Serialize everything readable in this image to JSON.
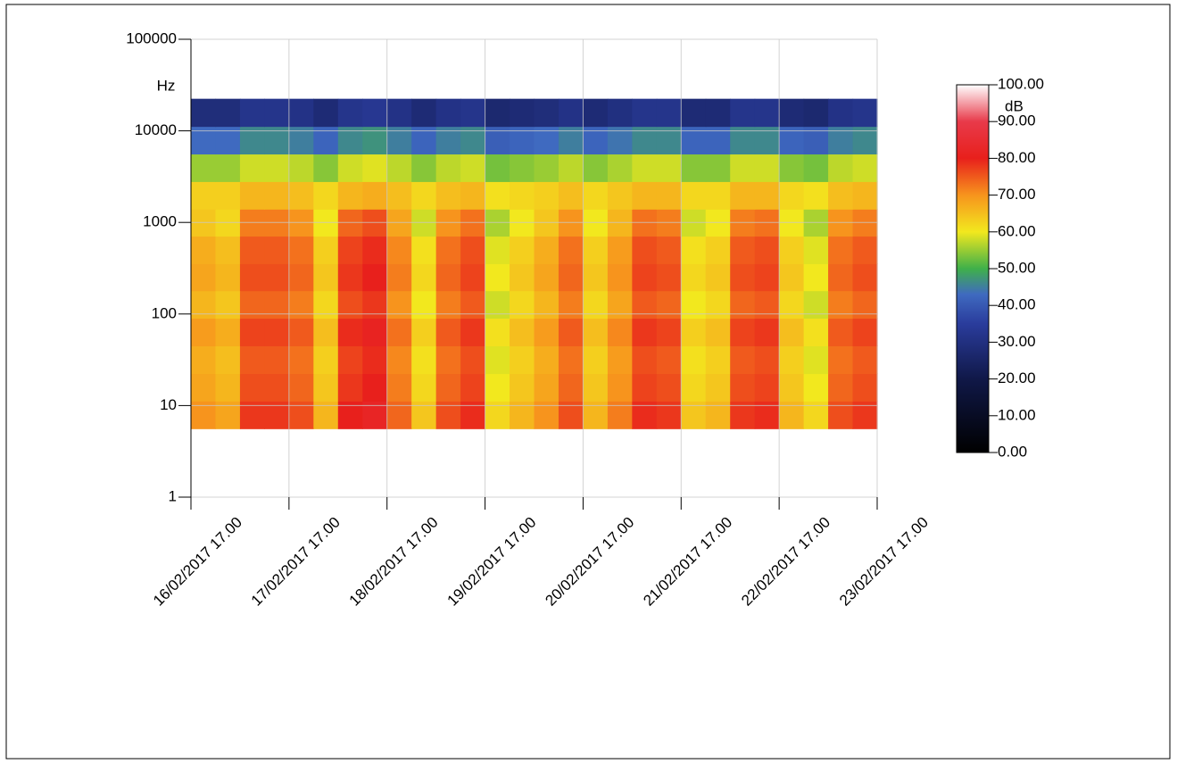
{
  "chart_data": {
    "type": "heatmap",
    "y_label": "Hz",
    "colorbar_label": "dB",
    "xticks": [
      "16/02/2017 17.00",
      "17/02/2017 17.00",
      "18/02/2017 17.00",
      "19/02/2017 17.00",
      "20/02/2017 17.00",
      "21/02/2017 17.00",
      "22/02/2017 17.00",
      "23/02/2017 17.00"
    ],
    "ylim": [
      1,
      100000
    ],
    "yticks": [
      1,
      10,
      100,
      1000,
      10000,
      100000
    ],
    "y_log": true,
    "grid": true,
    "bins": [
      5.6,
      11.2,
      22.4,
      45,
      90,
      180,
      355,
      710,
      1400,
      2800,
      5600,
      11200,
      22400
    ],
    "z": [
      [
        70,
        68,
        78,
        78,
        76,
        66,
        80,
        82,
        74,
        64,
        76,
        79,
        62,
        66,
        70,
        76,
        66,
        72,
        79,
        78,
        64,
        66,
        78,
        79,
        66,
        62,
        76,
        78
      ],
      [
        68,
        66,
        76,
        76,
        74,
        64,
        78,
        80,
        72,
        62,
        74,
        77,
        60,
        64,
        68,
        74,
        64,
        70,
        77,
        76,
        62,
        64,
        76,
        77,
        64,
        60,
        74,
        76
      ],
      [
        67,
        65,
        75,
        75,
        73,
        63,
        77,
        79,
        71,
        61,
        73,
        76,
        59,
        63,
        67,
        73,
        63,
        69,
        76,
        75,
        61,
        63,
        75,
        76,
        63,
        59,
        73,
        75
      ],
      [
        69,
        67,
        77,
        77,
        75,
        65,
        79,
        81,
        73,
        63,
        75,
        78,
        61,
        65,
        69,
        75,
        65,
        71,
        78,
        77,
        63,
        65,
        77,
        78,
        65,
        61,
        75,
        77
      ],
      [
        66,
        64,
        74,
        74,
        72,
        62,
        76,
        78,
        70,
        60,
        72,
        75,
        58,
        62,
        66,
        72,
        62,
        68,
        75,
        74,
        60,
        62,
        74,
        75,
        62,
        58,
        72,
        74
      ],
      [
        68,
        66,
        76,
        76,
        74,
        64,
        78,
        80,
        72,
        62,
        74,
        77,
        60,
        64,
        68,
        74,
        64,
        70,
        77,
        76,
        62,
        64,
        76,
        77,
        64,
        60,
        74,
        76
      ],
      [
        67,
        65,
        75,
        75,
        73,
        63,
        77,
        79,
        71,
        61,
        73,
        76,
        59,
        63,
        67,
        73,
        63,
        69,
        76,
        75,
        61,
        63,
        75,
        76,
        63,
        59,
        73,
        75
      ],
      [
        64,
        62,
        72,
        72,
        70,
        60,
        74,
        76,
        68,
        58,
        70,
        73,
        56,
        60,
        64,
        70,
        60,
        66,
        73,
        72,
        58,
        60,
        72,
        73,
        60,
        56,
        70,
        72
      ],
      [
        63,
        63,
        66,
        66,
        65,
        62,
        66,
        67,
        65,
        62,
        65,
        66,
        61,
        62,
        63,
        65,
        62,
        64,
        66,
        66,
        62,
        62,
        66,
        66,
        62,
        61,
        65,
        66
      ],
      [
        55,
        55,
        58,
        58,
        57,
        54,
        58,
        59,
        57,
        54,
        57,
        58,
        53,
        54,
        55,
        57,
        54,
        56,
        58,
        58,
        54,
        54,
        58,
        58,
        54,
        53,
        57,
        58
      ],
      [
        43,
        43,
        46,
        46,
        45,
        42,
        46,
        47,
        45,
        42,
        45,
        46,
        41,
        42,
        43,
        45,
        42,
        44,
        46,
        46,
        42,
        42,
        46,
        46,
        42,
        41,
        45,
        46
      ],
      [
        29,
        29,
        32,
        32,
        31,
        28,
        32,
        33,
        31,
        28,
        31,
        32,
        27,
        28,
        29,
        31,
        28,
        30,
        32,
        32,
        28,
        28,
        32,
        32,
        28,
        27,
        31,
        32
      ]
    ],
    "zlim": [
      0,
      100
    ],
    "zticks": [
      {
        "value": 0,
        "label": "0.00"
      },
      {
        "value": 10,
        "label": "10.00"
      },
      {
        "value": 20,
        "label": "20.00"
      },
      {
        "value": 30,
        "label": "30.00"
      },
      {
        "value": 40,
        "label": "40.00"
      },
      {
        "value": 50,
        "label": "50.00"
      },
      {
        "value": 60,
        "label": "60.00"
      },
      {
        "value": 70,
        "label": "70.00"
      },
      {
        "value": 80,
        "label": "80.00"
      },
      {
        "value": 90,
        "label": "90.00"
      },
      {
        "value": 100,
        "label": "100.00"
      }
    ],
    "colorscale": [
      {
        "value": 0,
        "color": "#000000"
      },
      {
        "value": 20,
        "color": "#101848"
      },
      {
        "value": 35,
        "color": "#2a3c9c"
      },
      {
        "value": 43,
        "color": "#3f6ac0"
      },
      {
        "value": 50,
        "color": "#3fb04a"
      },
      {
        "value": 60,
        "color": "#f2e81e"
      },
      {
        "value": 70,
        "color": "#f7941d"
      },
      {
        "value": 80,
        "color": "#e8201c"
      },
      {
        "value": 90,
        "color": "#e83a4a"
      },
      {
        "value": 100,
        "color": "#ffffff"
      }
    ]
  }
}
